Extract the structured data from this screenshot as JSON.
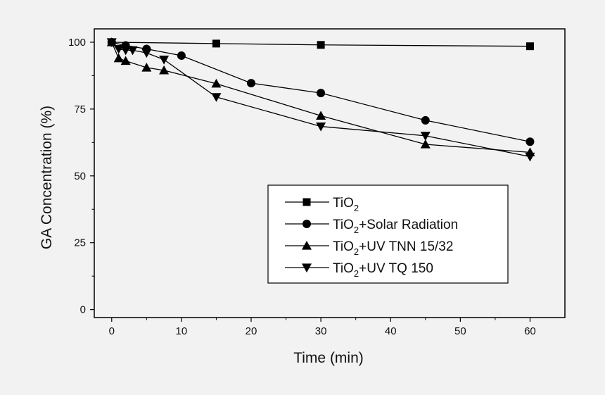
{
  "chart_data": {
    "type": "line",
    "title": "",
    "xlabel": "Time (min)",
    "ylabel": "GA Concentration (%)",
    "xlim": [
      -2.5,
      65
    ],
    "ylim": [
      -3,
      105
    ],
    "xticks": [
      0,
      10,
      20,
      30,
      40,
      50,
      60
    ],
    "yticks": [
      0,
      25,
      50,
      75,
      100
    ],
    "grid": false,
    "legend_position": "center-right",
    "series": [
      {
        "name": "TiO2",
        "label_main": "TiO",
        "label_sub": "2",
        "label_rest": "",
        "marker": "square",
        "x": [
          0,
          15,
          30,
          60
        ],
        "y": [
          100,
          99.5,
          99,
          98.5
        ]
      },
      {
        "name": "TiO2+Solar Radiation",
        "label_main": "TiO",
        "label_sub": "2",
        "label_rest": "+Solar Radiation",
        "marker": "circle",
        "x": [
          0,
          2,
          5,
          10,
          20,
          30,
          45,
          60
        ],
        "y": [
          100,
          98.8,
          97.5,
          95,
          84.7,
          81,
          70.8,
          62.8
        ]
      },
      {
        "name": "TiO2+UV TNN 15/32",
        "label_main": "TiO",
        "label_sub": "2",
        "label_rest": "+UV TNN 15/32",
        "marker": "triangle-up",
        "x": [
          0,
          1,
          2,
          5,
          7.5,
          15,
          30,
          45,
          60
        ],
        "y": [
          100,
          94,
          93,
          90.5,
          89.5,
          84.5,
          72.5,
          61.8,
          58.8
        ]
      },
      {
        "name": "TiO2+UV TQ 150",
        "label_main": "TiO",
        "label_sub": "2",
        "label_rest": "+UV TQ 150",
        "marker": "triangle-down",
        "x": [
          0,
          1,
          2,
          3,
          5,
          7.5,
          15,
          30,
          45,
          60
        ],
        "y": [
          100,
          97.5,
          97,
          97,
          96,
          93.5,
          79.5,
          68.5,
          65,
          57.2
        ]
      }
    ]
  }
}
